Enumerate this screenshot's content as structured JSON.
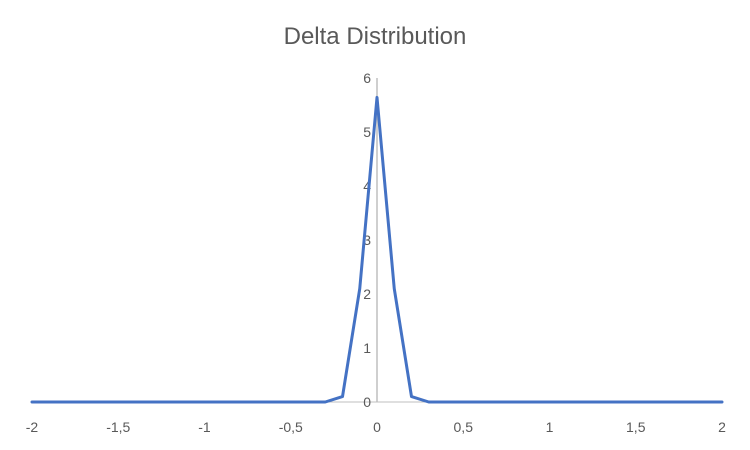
{
  "chart_data": {
    "type": "line",
    "title": "Delta Distribution",
    "xlabel": "",
    "ylabel": "",
    "xlim": [
      -2,
      2
    ],
    "ylim": [
      0,
      6
    ],
    "x_ticks": [
      -2,
      -1.5,
      -1,
      -0.5,
      0,
      0.5,
      1,
      1.5,
      2
    ],
    "x_tick_labels": [
      "-2",
      "-1,5",
      "-1",
      "-0,5",
      "0",
      "0,5",
      "1",
      "1,5",
      "2"
    ],
    "y_ticks": [
      0,
      1,
      2,
      3,
      4,
      5,
      6
    ],
    "y_tick_labels": [
      "0",
      "1",
      "2",
      "3",
      "4",
      "5",
      "6"
    ],
    "grid": false,
    "legend": "none",
    "series": [
      {
        "color": "#4472C4",
        "x": [
          -2,
          -0.3,
          -0.2,
          -0.1,
          0,
          0.1,
          0.2,
          0.3,
          2
        ],
        "y": [
          0,
          0,
          0.1,
          2.1,
          5.64,
          2.1,
          0.1,
          0,
          0
        ]
      }
    ],
    "axis_color": "#BFBFBF"
  }
}
